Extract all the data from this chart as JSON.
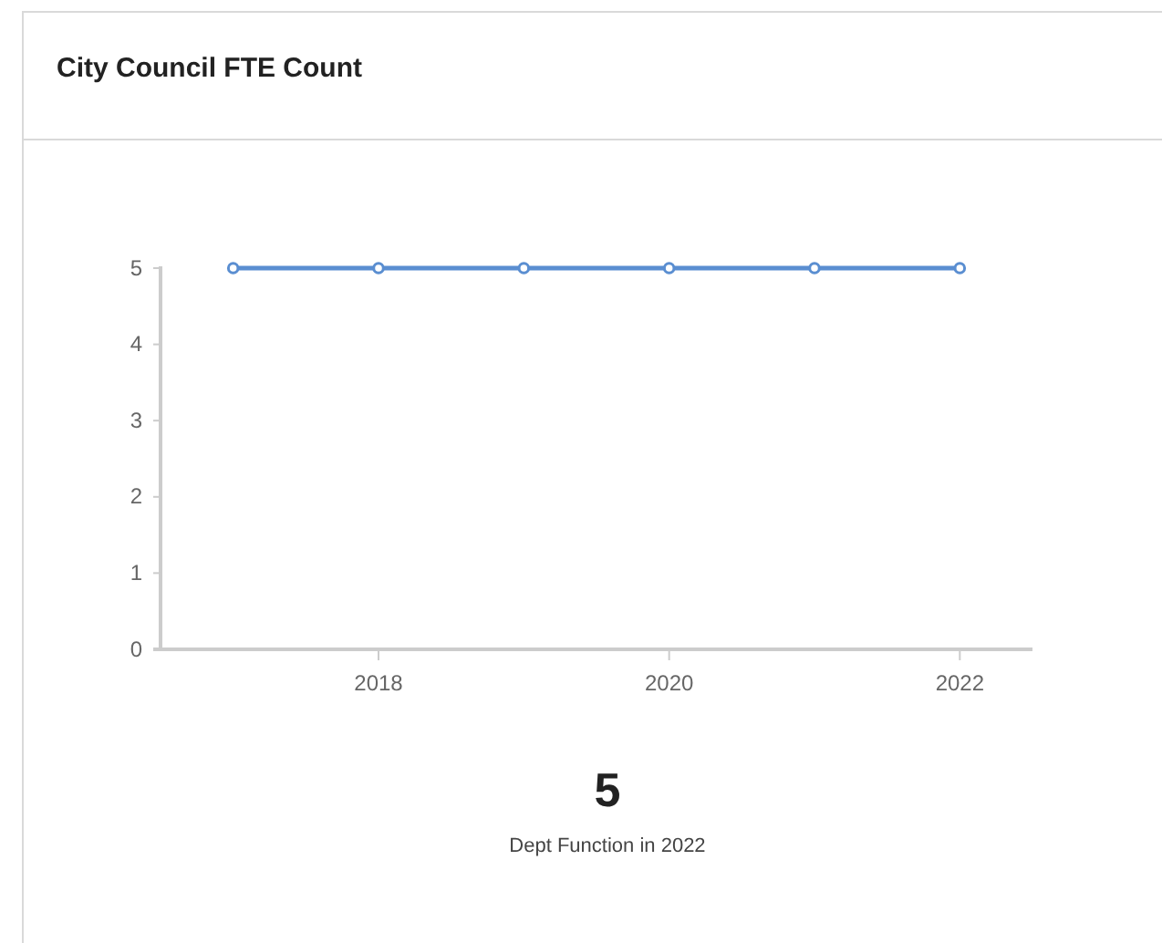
{
  "chart_data": {
    "type": "line",
    "title": "City Council FTE Count",
    "x": [
      2017,
      2018,
      2019,
      2020,
      2021,
      2022
    ],
    "series": [
      {
        "color": "#5a8ed1",
        "values": [
          5,
          5,
          5,
          5,
          5,
          5
        ]
      }
    ],
    "xlim": [
      2016.5,
      2022.5
    ],
    "xticks": [
      2018,
      2020,
      2022
    ],
    "ylim": [
      0,
      5
    ],
    "yticks": [
      0,
      1,
      2,
      3,
      4,
      5
    ],
    "marker": "circle",
    "line_style": "solid",
    "grid": false,
    "annotations": [
      "5",
      "Dept Function in 2022"
    ]
  }
}
